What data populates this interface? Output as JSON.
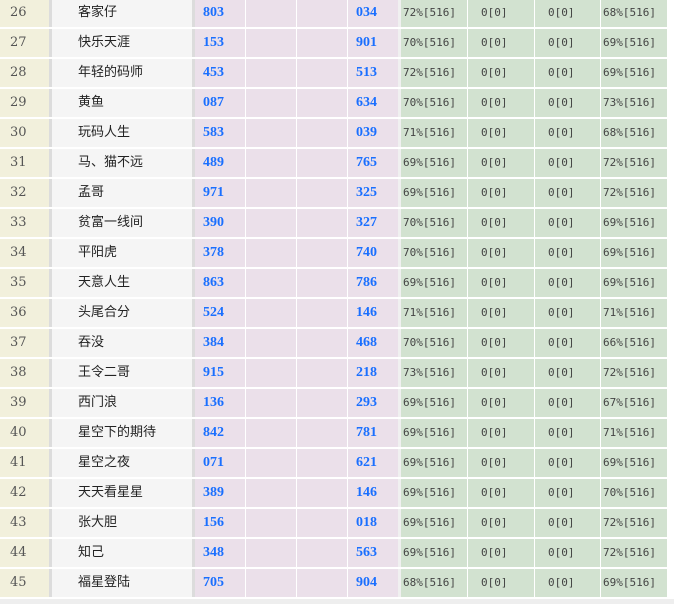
{
  "colors": {
    "rank_bg": "#f2f0dc",
    "name_bg": "#f5f5f5",
    "number_bg": "#ebe0ea",
    "stat_bg": "#d2e2d0",
    "number_text": "#1a6fff"
  },
  "rows": [
    {
      "rank": "26",
      "name": "客家仔",
      "num1": "803",
      "num2": "034",
      "s1": "72%[516]",
      "s2": "0[0]",
      "s3": "0[0]",
      "s4": "68%[516]"
    },
    {
      "rank": "27",
      "name": "快乐天涯",
      "num1": "153",
      "num2": "901",
      "s1": "70%[516]",
      "s2": "0[0]",
      "s3": "0[0]",
      "s4": "69%[516]"
    },
    {
      "rank": "28",
      "name": "年轻的码师",
      "num1": "453",
      "num2": "513",
      "s1": "72%[516]",
      "s2": "0[0]",
      "s3": "0[0]",
      "s4": "69%[516]"
    },
    {
      "rank": "29",
      "name": "黄鱼",
      "num1": "087",
      "num2": "634",
      "s1": "70%[516]",
      "s2": "0[0]",
      "s3": "0[0]",
      "s4": "73%[516]"
    },
    {
      "rank": "30",
      "name": "玩码人生",
      "num1": "583",
      "num2": "039",
      "s1": "71%[516]",
      "s2": "0[0]",
      "s3": "0[0]",
      "s4": "68%[516]"
    },
    {
      "rank": "31",
      "name": "马、猫不远",
      "num1": "489",
      "num2": "765",
      "s1": "69%[516]",
      "s2": "0[0]",
      "s3": "0[0]",
      "s4": "72%[516]"
    },
    {
      "rank": "32",
      "name": "孟哥",
      "num1": "971",
      "num2": "325",
      "s1": "69%[516]",
      "s2": "0[0]",
      "s3": "0[0]",
      "s4": "72%[516]"
    },
    {
      "rank": "33",
      "name": "贫富一线间",
      "num1": "390",
      "num2": "327",
      "s1": "70%[516]",
      "s2": "0[0]",
      "s3": "0[0]",
      "s4": "69%[516]"
    },
    {
      "rank": "34",
      "name": "平阳虎",
      "num1": "378",
      "num2": "740",
      "s1": "70%[516]",
      "s2": "0[0]",
      "s3": "0[0]",
      "s4": "69%[516]"
    },
    {
      "rank": "35",
      "name": "天意人生",
      "num1": "863",
      "num2": "786",
      "s1": "69%[516]",
      "s2": "0[0]",
      "s3": "0[0]",
      "s4": "69%[516]"
    },
    {
      "rank": "36",
      "name": "头尾合分",
      "num1": "524",
      "num2": "146",
      "s1": "71%[516]",
      "s2": "0[0]",
      "s3": "0[0]",
      "s4": "71%[516]"
    },
    {
      "rank": "37",
      "name": "吞没",
      "num1": "384",
      "num2": "468",
      "s1": "70%[516]",
      "s2": "0[0]",
      "s3": "0[0]",
      "s4": "66%[516]"
    },
    {
      "rank": "38",
      "name": "王令二哥",
      "num1": "915",
      "num2": "218",
      "s1": "73%[516]",
      "s2": "0[0]",
      "s3": "0[0]",
      "s4": "72%[516]"
    },
    {
      "rank": "39",
      "name": "西门浪",
      "num1": "136",
      "num2": "293",
      "s1": "69%[516]",
      "s2": "0[0]",
      "s3": "0[0]",
      "s4": "67%[516]"
    },
    {
      "rank": "40",
      "name": "星空下的期待",
      "num1": "842",
      "num2": "781",
      "s1": "69%[516]",
      "s2": "0[0]",
      "s3": "0[0]",
      "s4": "71%[516]"
    },
    {
      "rank": "41",
      "name": "星空之夜",
      "num1": "071",
      "num2": "621",
      "s1": "69%[516]",
      "s2": "0[0]",
      "s3": "0[0]",
      "s4": "69%[516]"
    },
    {
      "rank": "42",
      "name": "天天看星星",
      "num1": "389",
      "num2": "146",
      "s1": "69%[516]",
      "s2": "0[0]",
      "s3": "0[0]",
      "s4": "70%[516]"
    },
    {
      "rank": "43",
      "name": "张大胆",
      "num1": "156",
      "num2": "018",
      "s1": "69%[516]",
      "s2": "0[0]",
      "s3": "0[0]",
      "s4": "72%[516]"
    },
    {
      "rank": "44",
      "name": "知己",
      "num1": "348",
      "num2": "563",
      "s1": "69%[516]",
      "s2": "0[0]",
      "s3": "0[0]",
      "s4": "72%[516]"
    },
    {
      "rank": "45",
      "name": "福星登陆",
      "num1": "705",
      "num2": "904",
      "s1": "68%[516]",
      "s2": "0[0]",
      "s3": "0[0]",
      "s4": "69%[516]"
    }
  ]
}
